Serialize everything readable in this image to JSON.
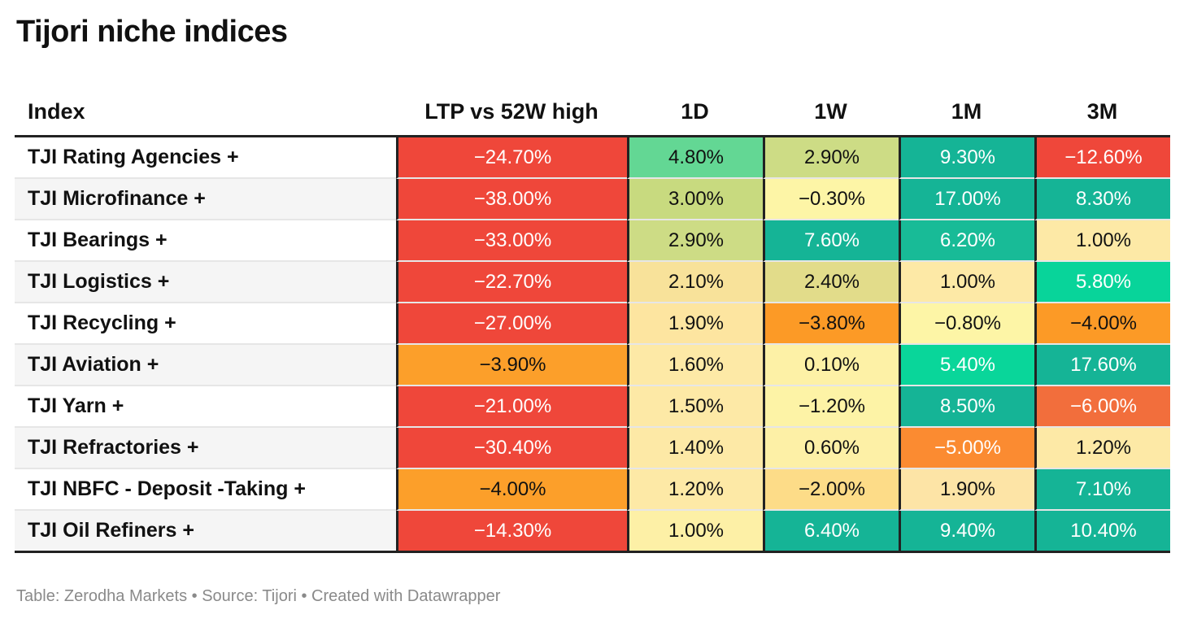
{
  "title": "Tijori niche indices",
  "footer": "Table: Zerodha Markets • Source: Tijori • Created with Datawrapper",
  "chart_data": {
    "type": "table",
    "title": "Tijori niche indices",
    "columns": [
      "Index",
      "LTP vs 52W high",
      "1D",
      "1W",
      "1M",
      "3M"
    ],
    "rows": [
      {
        "name": "TJI Rating Agencies +",
        "values": [
          "−24.70%",
          "4.80%",
          "2.90%",
          "9.30%",
          "−12.60%"
        ],
        "colors": [
          "#ef473a",
          "#63d794",
          "#cddc85",
          "#15b496",
          "#ef473a"
        ]
      },
      {
        "name": "TJI Microfinance +",
        "values": [
          "−38.00%",
          "3.00%",
          "−0.30%",
          "17.00%",
          "8.30%"
        ],
        "colors": [
          "#ef473a",
          "#c8da7f",
          "#fdf5a6",
          "#15b496",
          "#15b496"
        ]
      },
      {
        "name": "TJI Bearings +",
        "values": [
          "−33.00%",
          "2.90%",
          "7.60%",
          "6.20%",
          "1.00%"
        ],
        "colors": [
          "#ef473a",
          "#cddc85",
          "#15b496",
          "#18bb97",
          "#fde9a6"
        ]
      },
      {
        "name": "TJI Logistics +",
        "values": [
          "−22.70%",
          "2.10%",
          "2.40%",
          "1.00%",
          "5.80%"
        ],
        "colors": [
          "#ef473a",
          "#f8e29a",
          "#e2dc8a",
          "#fde9a6",
          "#08d49a"
        ]
      },
      {
        "name": "TJI Recycling +",
        "values": [
          "−27.00%",
          "1.90%",
          "−3.80%",
          "−0.80%",
          "−4.00%"
        ],
        "colors": [
          "#ef473a",
          "#fde5a0",
          "#fc9a26",
          "#fdf5a6",
          "#fc9a26"
        ]
      },
      {
        "name": "TJI Aviation +",
        "values": [
          "−3.90%",
          "1.60%",
          "0.10%",
          "5.40%",
          "17.60%"
        ],
        "colors": [
          "#fc9f2a",
          "#fde9a6",
          "#fdf1a6",
          "#09d69a",
          "#15b496"
        ]
      },
      {
        "name": "TJI Yarn +",
        "values": [
          "−21.00%",
          "1.50%",
          "−1.20%",
          "8.50%",
          "−6.00%"
        ],
        "colors": [
          "#ef473a",
          "#fde9a6",
          "#fdf3a6",
          "#15b496",
          "#f26e3c"
        ]
      },
      {
        "name": "TJI Refractories +",
        "values": [
          "−30.40%",
          "1.40%",
          "0.60%",
          "−5.00%",
          "1.20%"
        ],
        "colors": [
          "#ef473a",
          "#fde9a6",
          "#fdf0a6",
          "#fb8b31",
          "#fde9a6"
        ]
      },
      {
        "name": "TJI NBFC - Deposit -Taking +",
        "values": [
          "−4.00%",
          "1.20%",
          "−2.00%",
          "1.90%",
          "7.10%"
        ],
        "colors": [
          "#fc9f2a",
          "#fde9a6",
          "#fddc88",
          "#fde4a6",
          "#15b496"
        ]
      },
      {
        "name": "TJI Oil Refiners +",
        "values": [
          "−14.30%",
          "1.00%",
          "6.40%",
          "9.40%",
          "10.40%"
        ],
        "colors": [
          "#ef473a",
          "#fdf0a6",
          "#15b496",
          "#15b496",
          "#15b496"
        ]
      }
    ]
  }
}
